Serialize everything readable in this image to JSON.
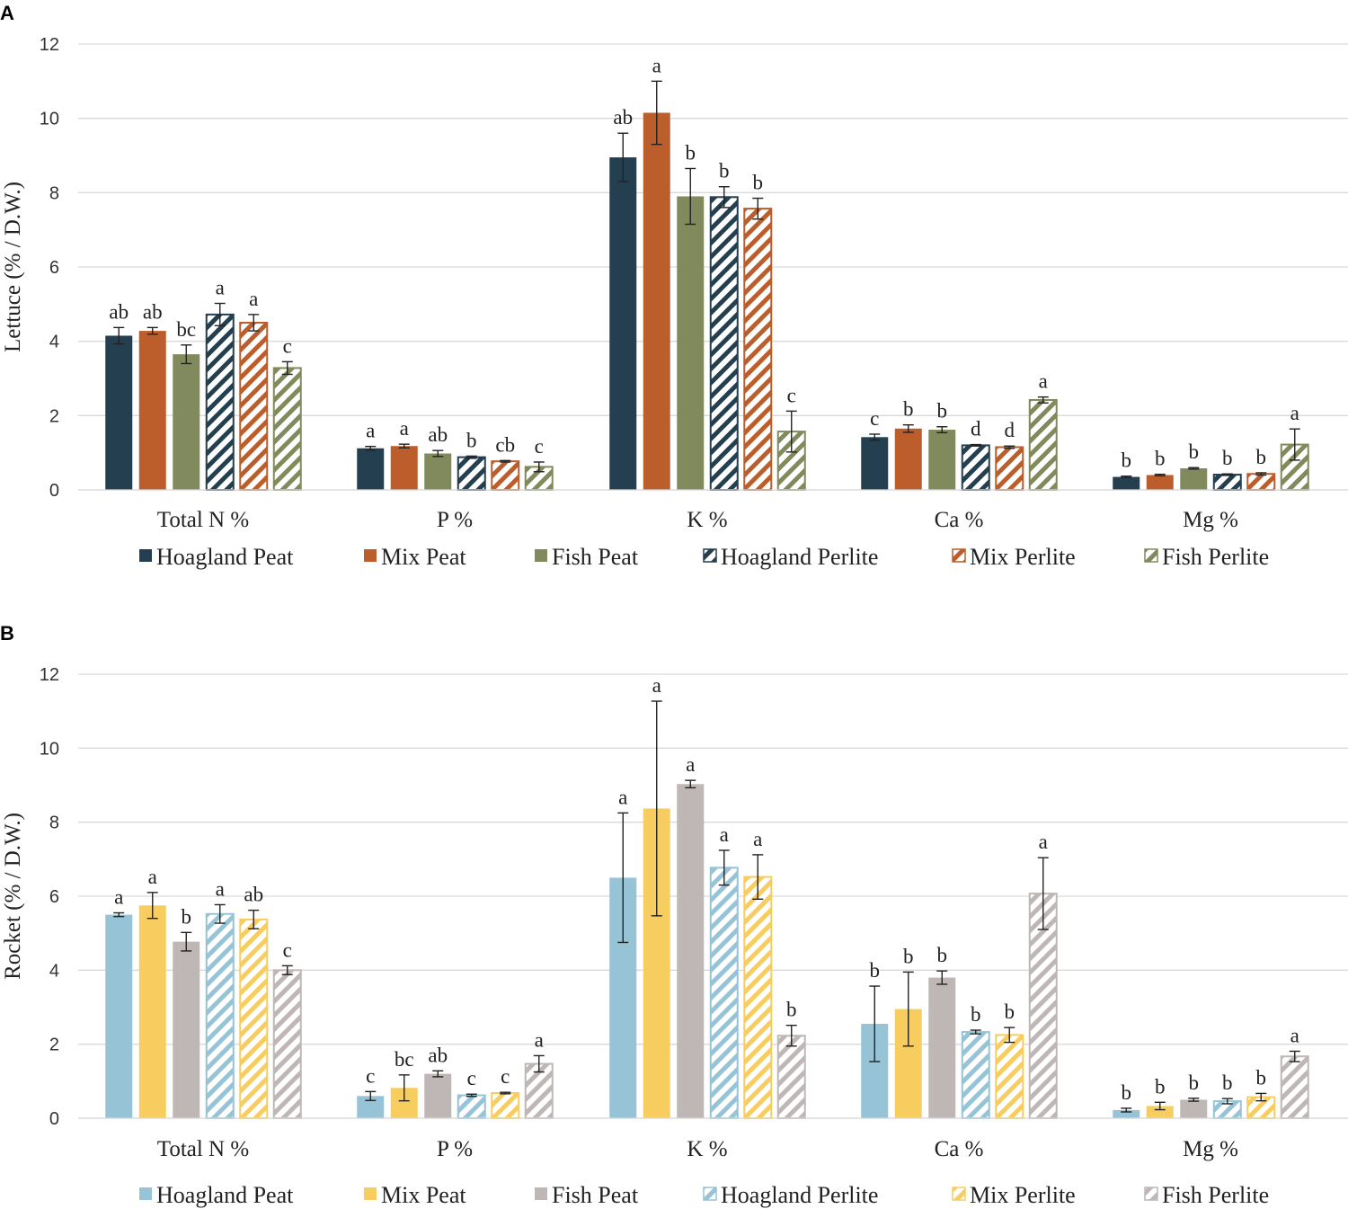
{
  "chart_data": [
    {
      "panel": "A",
      "type": "bar",
      "title": "",
      "xlabel": "",
      "ylabel": "Lettuce (% / D.W.)",
      "ylim": [
        0,
        12
      ],
      "yticks": [
        "0",
        "2",
        "4",
        "6",
        "8",
        "10",
        "12"
      ],
      "categories": [
        "Total N %",
        "P %",
        "K %",
        "Ca %",
        "Mg %"
      ],
      "series": [
        {
          "name": "Hoagland Peat",
          "color": "#243f4f",
          "pattern": "solid",
          "values": [
            4.15,
            1.12,
            8.95,
            1.42,
            0.35
          ],
          "errors": [
            0.22,
            0.05,
            0.65,
            0.08,
            0.02
          ],
          "letters": [
            "ab",
            "a",
            "ab",
            "c",
            "b"
          ]
        },
        {
          "name": "Mix Peat",
          "color": "#bb5e2b",
          "pattern": "solid",
          "values": [
            4.28,
            1.18,
            10.15,
            1.65,
            0.4
          ],
          "errors": [
            0.09,
            0.05,
            0.85,
            0.1,
            0.02
          ],
          "letters": [
            "ab",
            "a",
            "a",
            "b",
            "b"
          ]
        },
        {
          "name": "Fish Peat",
          "color": "#818a5c",
          "pattern": "solid",
          "values": [
            3.65,
            0.98,
            7.9,
            1.62,
            0.58
          ],
          "errors": [
            0.25,
            0.08,
            0.75,
            0.08,
            0.02
          ],
          "letters": [
            "bc",
            "ab",
            "b",
            "b",
            "b"
          ]
        },
        {
          "name": "Hoagland Perlite",
          "color": "#243f4f",
          "pattern": "hatch",
          "values": [
            4.72,
            0.88,
            7.88,
            1.2,
            0.41
          ],
          "errors": [
            0.3,
            0.03,
            0.28,
            0.02,
            0.02
          ],
          "letters": [
            "a",
            "b",
            "b",
            "d",
            "b"
          ]
        },
        {
          "name": "Mix Perlite",
          "color": "#bb5e2b",
          "pattern": "hatch",
          "values": [
            4.5,
            0.77,
            7.57,
            1.15,
            0.43
          ],
          "errors": [
            0.22,
            0.02,
            0.28,
            0.03,
            0.03
          ],
          "letters": [
            "a",
            "cb",
            "b",
            "d",
            "b"
          ]
        },
        {
          "name": "Fish Perlite",
          "color": "#818a5c",
          "pattern": "hatch",
          "values": [
            3.28,
            0.62,
            1.57,
            2.42,
            1.22
          ],
          "errors": [
            0.17,
            0.13,
            0.55,
            0.08,
            0.42
          ],
          "letters": [
            "c",
            "c",
            "c",
            "a",
            "a"
          ]
        }
      ]
    },
    {
      "panel": "B",
      "type": "bar",
      "title": "",
      "xlabel": "",
      "ylabel": "Rocket (% / D.W.)",
      "ylim": [
        0,
        12
      ],
      "yticks": [
        "0",
        "2",
        "4",
        "6",
        "8",
        "10",
        "12"
      ],
      "categories": [
        "Total N %",
        "P %",
        "K %",
        "Ca %",
        "Mg %"
      ],
      "series": [
        {
          "name": "Hoagland Peat",
          "color": "#96c3d5",
          "pattern": "solid",
          "values": [
            5.5,
            0.6,
            6.5,
            2.55,
            0.22
          ],
          "errors": [
            0.05,
            0.12,
            1.75,
            1.02,
            0.05
          ],
          "letters": [
            "a",
            "c",
            "a",
            "b",
            "b"
          ]
        },
        {
          "name": "Mix Peat",
          "color": "#f8cd5f",
          "pattern": "solid",
          "values": [
            5.75,
            0.82,
            8.37,
            2.95,
            0.33
          ],
          "errors": [
            0.35,
            0.35,
            2.9,
            1.0,
            0.1
          ],
          "letters": [
            "a",
            "bc",
            "a",
            "b",
            "b"
          ]
        },
        {
          "name": "Fish Peat",
          "color": "#bfb6b6",
          "pattern": "solid",
          "values": [
            4.77,
            1.2,
            9.03,
            3.8,
            0.5
          ],
          "errors": [
            0.25,
            0.08,
            0.1,
            0.18,
            0.04
          ],
          "letters": [
            "b",
            "ab",
            "a",
            "b",
            "b"
          ]
        },
        {
          "name": "Hoagland Perlite",
          "color": "#96c3d5",
          "pattern": "hatch",
          "values": [
            5.52,
            0.62,
            6.77,
            2.33,
            0.46
          ],
          "errors": [
            0.25,
            0.03,
            0.47,
            0.05,
            0.07
          ],
          "letters": [
            "a",
            "c",
            "a",
            "b",
            "b"
          ]
        },
        {
          "name": "Mix Perlite",
          "color": "#f8cd5f",
          "pattern": "hatch",
          "values": [
            5.37,
            0.68,
            6.52,
            2.25,
            0.57
          ],
          "errors": [
            0.25,
            0.02,
            0.6,
            0.2,
            0.1
          ],
          "letters": [
            "ab",
            "c",
            "a",
            "b",
            "b"
          ]
        },
        {
          "name": "Fish Perlite",
          "color": "#bfb6b6",
          "pattern": "hatch",
          "values": [
            4.0,
            1.47,
            2.23,
            6.07,
            1.67
          ],
          "errors": [
            0.12,
            0.22,
            0.28,
            0.97,
            0.14
          ],
          "letters": [
            "c",
            "a",
            "b",
            "a",
            "a"
          ]
        }
      ]
    }
  ]
}
